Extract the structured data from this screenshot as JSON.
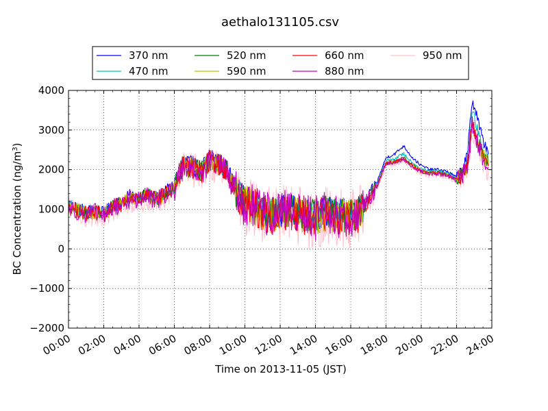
{
  "chart_data": {
    "type": "line",
    "title": "aethalo131105.csv",
    "xlabel": "Time on 2013-11-05 (JST)",
    "ylabel": "BC Concentration (ng/m³)",
    "ylabel_main": "BC Concentration (ng/m",
    "ylabel_sup": "3",
    "ylabel_end": ")",
    "xlim": [
      0,
      24
    ],
    "ylim": [
      -2000,
      4000
    ],
    "grid": true,
    "legend_position": "top",
    "x_ticks": [
      "00:00",
      "02:00",
      "04:00",
      "06:00",
      "08:00",
      "10:00",
      "12:00",
      "14:00",
      "16:00",
      "18:00",
      "20:00",
      "22:00",
      "24:00"
    ],
    "y_ticks": [
      "4000",
      "3000",
      "2000",
      "1000",
      "0",
      "−1000",
      "−2000"
    ],
    "y_tick_values": [
      4000,
      3000,
      2000,
      1000,
      0,
      -1000,
      -2000
    ],
    "x_unit": "hours",
    "anchor_hours": [
      0.0,
      0.5,
      1.0,
      1.5,
      2.0,
      2.5,
      3.0,
      3.5,
      4.0,
      4.5,
      5.0,
      5.5,
      6.0,
      6.5,
      7.0,
      7.5,
      8.0,
      8.5,
      9.0,
      9.5,
      10.0,
      10.5,
      11.0,
      11.5,
      12.0,
      12.5,
      13.0,
      13.5,
      14.0,
      14.5,
      15.0,
      15.5,
      16.0,
      16.5,
      17.0,
      17.5,
      18.0,
      18.5,
      19.0,
      19.5,
      20.0,
      20.5,
      21.0,
      21.5,
      22.0,
      22.3,
      22.6,
      22.9,
      23.2,
      23.5,
      23.8
    ],
    "series": [
      {
        "name": "370 nm",
        "color": "#0000ff",
        "noise": 200,
        "values": [
          1150,
          1050,
          950,
          1000,
          900,
          1100,
          1200,
          1350,
          1300,
          1400,
          1300,
          1450,
          1600,
          2200,
          2100,
          2000,
          2300,
          2250,
          2000,
          1500,
          1200,
          1100,
          1000,
          900,
          950,
          1000,
          950,
          900,
          850,
          950,
          900,
          900,
          850,
          950,
          1300,
          1700,
          2300,
          2400,
          2600,
          2300,
          2100,
          2000,
          2000,
          1950,
          1800,
          2000,
          2300,
          3800,
          3300,
          2700,
          2500
        ]
      },
      {
        "name": "470 nm",
        "color": "#00bfbf",
        "noise": 200,
        "values": [
          1100,
          1000,
          920,
          970,
          880,
          1080,
          1170,
          1320,
          1270,
          1380,
          1270,
          1420,
          1570,
          2150,
          2070,
          1980,
          2250,
          2200,
          1970,
          1480,
          1180,
          1080,
          980,
          880,
          930,
          980,
          930,
          880,
          830,
          930,
          880,
          880,
          830,
          930,
          1270,
          1650,
          2220,
          2280,
          2400,
          2180,
          2020,
          1950,
          1960,
          1900,
          1780,
          1920,
          2150,
          3550,
          2950,
          2500,
          2300
        ]
      },
      {
        "name": "520 nm",
        "color": "#008000",
        "noise": 220,
        "values": [
          1080,
          980,
          900,
          950,
          860,
          1060,
          1150,
          1300,
          1250,
          1360,
          1250,
          1400,
          1550,
          2120,
          2050,
          1960,
          2220,
          2180,
          1950,
          1460,
          1160,
          1060,
          960,
          860,
          910,
          960,
          910,
          860,
          810,
          910,
          860,
          860,
          810,
          910,
          1250,
          1620,
          2180,
          2220,
          2300,
          2120,
          1980,
          1920,
          1930,
          1870,
          1760,
          1880,
          2080,
          3200,
          2700,
          2400,
          2200
        ]
      },
      {
        "name": "590 nm",
        "color": "#bfbf00",
        "noise": 230,
        "values": [
          1070,
          970,
          890,
          940,
          850,
          1050,
          1140,
          1290,
          1240,
          1350,
          1240,
          1390,
          1540,
          2110,
          2040,
          1950,
          2210,
          2170,
          1940,
          1450,
          1150,
          1050,
          950,
          850,
          900,
          950,
          900,
          850,
          800,
          900,
          850,
          850,
          800,
          900,
          1240,
          1610,
          2170,
          2210,
          2280,
          2100,
          1970,
          1910,
          1920,
          1860,
          1750,
          1870,
          2060,
          3150,
          2650,
          2350,
          2150
        ]
      },
      {
        "name": "660 nm",
        "color": "#ff0000",
        "noise": 250,
        "values": [
          1060,
          960,
          880,
          930,
          840,
          1040,
          1130,
          1280,
          1230,
          1340,
          1230,
          1380,
          1530,
          2100,
          2030,
          1940,
          2200,
          2160,
          1930,
          1440,
          1140,
          1040,
          940,
          840,
          890,
          940,
          890,
          840,
          790,
          890,
          840,
          840,
          790,
          890,
          1230,
          1600,
          2160,
          2200,
          2270,
          2090,
          1960,
          1900,
          1910,
          1850,
          1740,
          1860,
          2050,
          3250,
          2700,
          2350,
          2150
        ]
      },
      {
        "name": "880 nm",
        "color": "#bf00bf",
        "noise": 290,
        "values": [
          1050,
          950,
          870,
          920,
          830,
          1030,
          1120,
          1270,
          1220,
          1330,
          1220,
          1370,
          1520,
          2100,
          2020,
          1930,
          2200,
          2150,
          1920,
          1430,
          1130,
          1030,
          930,
          830,
          880,
          930,
          880,
          830,
          780,
          880,
          830,
          830,
          780,
          880,
          1220,
          1590,
          2150,
          2190,
          2260,
          2080,
          1950,
          1890,
          1900,
          1840,
          1730,
          1850,
          2040,
          3150,
          2650,
          2300,
          2100
        ]
      },
      {
        "name": "950 nm",
        "color": "#ffc0cb",
        "noise": 380,
        "values": [
          1000,
          900,
          820,
          880,
          800,
          980,
          1080,
          1230,
          1180,
          1290,
          1180,
          1330,
          1480,
          2050,
          1980,
          1900,
          2150,
          2100,
          1880,
          1380,
          1080,
          980,
          880,
          780,
          830,
          880,
          830,
          780,
          730,
          830,
          780,
          780,
          730,
          830,
          1180,
          1550,
          2100,
          2150,
          2220,
          2040,
          1920,
          1860,
          1870,
          1810,
          1700,
          1810,
          1980,
          3050,
          2550,
          2200,
          2000
        ]
      }
    ]
  }
}
